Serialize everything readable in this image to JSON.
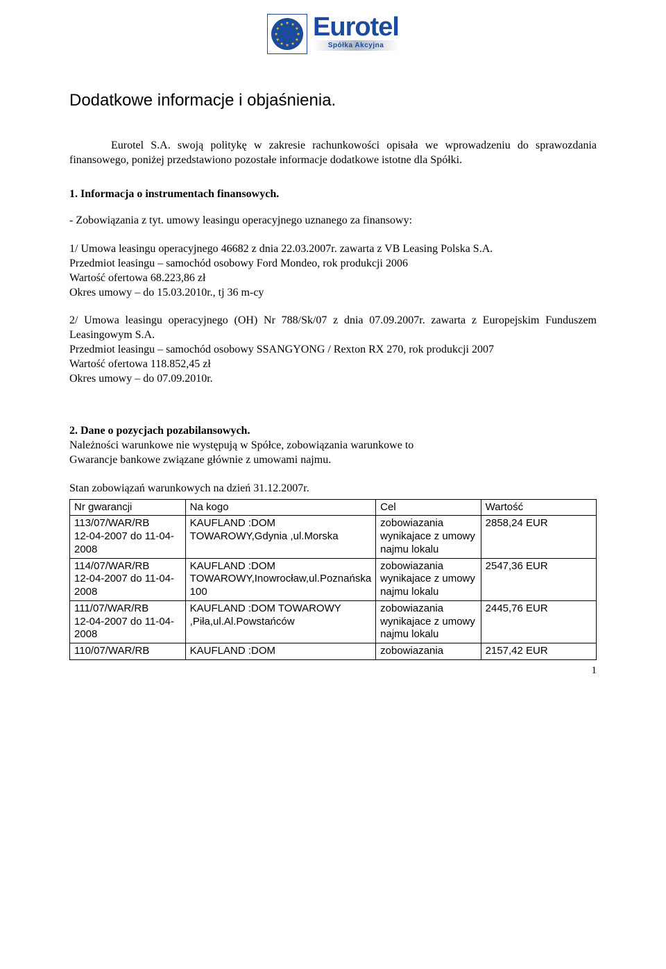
{
  "logo": {
    "name": "Eurotel",
    "subtitle": "Spółka Akcyjna",
    "brand_color": "#1a4b9c",
    "star_color": "#f5c542",
    "star_count": 12
  },
  "title": "Dodatkowe informacje i objaśnienia.",
  "intro": "Eurotel S.A. swoją politykę w zakresie rachunkowości opisała we wprowadzeniu do sprawozdania finansowego, poniżej przedstawiono pozostałe informacje dodatkowe istotne dla Spółki.",
  "section1": {
    "heading": "1. Informacja o instrumentach finansowych.",
    "line1": "- Zobowiązania z tyt. umowy leasingu operacyjnego uznanego za finansowy:",
    "item1": {
      "l1": "1/ Umowa leasingu operacyjnego 46682 z dnia 22.03.2007r. zawarta z VB Leasing Polska S.A.",
      "l2": "Przedmiot leasingu – samochód osobowy Ford Mondeo, rok produkcji 2006",
      "l3": "Wartość ofertowa 68.223,86 zł",
      "l4": "Okres umowy – do 15.03.2010r., tj 36 m-cy"
    },
    "item2": {
      "l1": "2/ Umowa leasingu operacyjnego (OH) Nr 788/Sk/07 z dnia 07.09.2007r.    zawarta z Europejskim Funduszem Leasingowym S.A.",
      "l2": "Przedmiot leasingu – samochód osobowy SSANGYONG / Rexton RX 270, rok produkcji 2007",
      "l3": "Wartość ofertowa 118.852,45 zł",
      "l4": "Okres umowy – do 07.09.2010r."
    }
  },
  "section2": {
    "heading": "2. Dane o pozycjach pozabilansowych.",
    "l1": "Należności warunkowe nie występują w Spółce,  zobowiązania warunkowe to",
    "l2": "Gwarancje bankowe związane głównie z umowami najmu.",
    "stan": "Stan zobowiązań warunkowych na dzień 31.12.2007r."
  },
  "table": {
    "headers": [
      "Nr gwarancji",
      "Na kogo",
      "Cel",
      "Wartość"
    ],
    "widths": [
      "22%",
      "36%",
      "20%",
      "22%"
    ],
    "rows": [
      {
        "c0": "113/07/WAR/RB\n12-04-2007 do 11-04-2008",
        "c1": "KAUFLAND :DOM TOWAROWY,Gdynia ,ul.Morska",
        "c2": "zobowiazania wynikajace z umowy najmu lokalu",
        "c3": "2858,24 EUR"
      },
      {
        "c0": "114/07/WAR/RB\n12-04-2007 do 11-04-2008",
        "c1": "KAUFLAND :DOM TOWAROWY,Inowrocław,ul.Poznańska 100",
        "c2": "zobowiazania wynikajace z umowy najmu lokalu",
        "c3": "2547,36 EUR"
      },
      {
        "c0": "111/07/WAR/RB\n12-04-2007 do 11-04-2008",
        "c1": "KAUFLAND :DOM TOWAROWY ,Piła,ul.Al.Powstańców",
        "c2": "zobowiazania wynikajace z umowy najmu lokalu",
        "c3": "2445,76 EUR"
      },
      {
        "c0": "110/07/WAR/RB",
        "c1": "KAUFLAND :DOM",
        "c2": "zobowiazania",
        "c3": "2157,42 EUR"
      }
    ]
  },
  "page_number": "1"
}
